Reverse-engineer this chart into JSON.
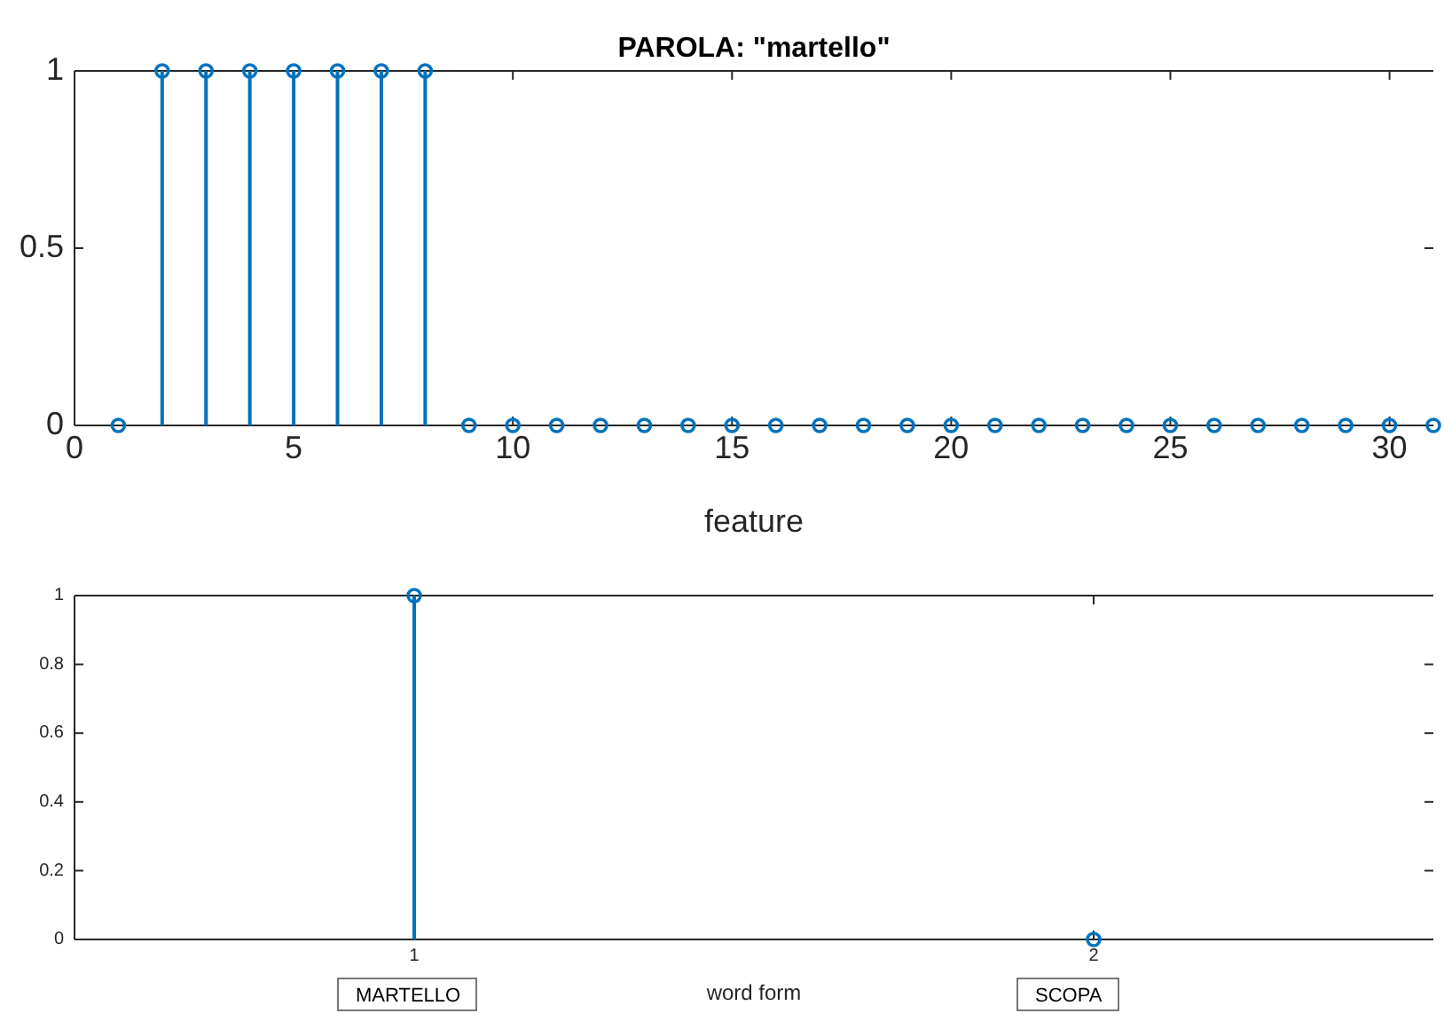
{
  "chart_data": [
    {
      "type": "lollipop",
      "title": "PAROLA: \"martello\"",
      "xlabel": "feature",
      "x": [
        1,
        2,
        3,
        4,
        5,
        6,
        7,
        8,
        9,
        10,
        11,
        12,
        13,
        14,
        15,
        16,
        17,
        18,
        19,
        20,
        21,
        22,
        23,
        24,
        25,
        26,
        27,
        28,
        29,
        30,
        31
      ],
      "values": [
        0,
        1,
        1,
        1,
        1,
        1,
        1,
        1,
        0,
        0,
        0,
        0,
        0,
        0,
        0,
        0,
        0,
        0,
        0,
        0,
        0,
        0,
        0,
        0,
        0,
        0,
        0,
        0,
        0,
        0,
        0
      ],
      "color": "#0072bd",
      "xlim": [
        0,
        31
      ],
      "ylim": [
        0,
        1
      ],
      "xticks": [
        0,
        5,
        10,
        15,
        20,
        25,
        30
      ],
      "yticks": [
        0,
        0.5,
        1
      ],
      "marker": "circle"
    },
    {
      "type": "lollipop",
      "xlabel": "word form",
      "x": [
        1,
        2
      ],
      "values": [
        1,
        0
      ],
      "color": "#0072bd",
      "xlim": [
        0.5,
        2.5
      ],
      "ylim": [
        0,
        1
      ],
      "xticks": [
        1,
        2
      ],
      "yticks": [
        0,
        0.2,
        0.4,
        0.6,
        0.8,
        1
      ],
      "marker": "circle",
      "annotations": [
        "MARTELLO",
        "SCOPA"
      ]
    }
  ]
}
